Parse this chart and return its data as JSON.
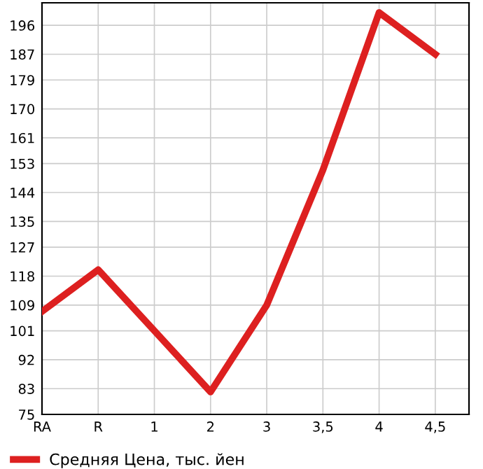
{
  "chart_data": {
    "type": "line",
    "categories": [
      "RA",
      "R",
      "1",
      "2",
      "3",
      "3,5",
      "4",
      "4,5"
    ],
    "series": [
      {
        "name": "Средняя Цена, тыс. йен",
        "color": "#dd2020",
        "values": [
          107,
          120,
          101,
          82,
          109,
          151,
          200,
          187
        ]
      }
    ],
    "ylim": [
      75,
      203
    ],
    "yticks": [
      75,
      83,
      92,
      101,
      109,
      118,
      127,
      135,
      144,
      153,
      161,
      170,
      179,
      187,
      196
    ],
    "grid": true,
    "legend": "bottom left",
    "marker": "none",
    "line_style": "solid"
  }
}
